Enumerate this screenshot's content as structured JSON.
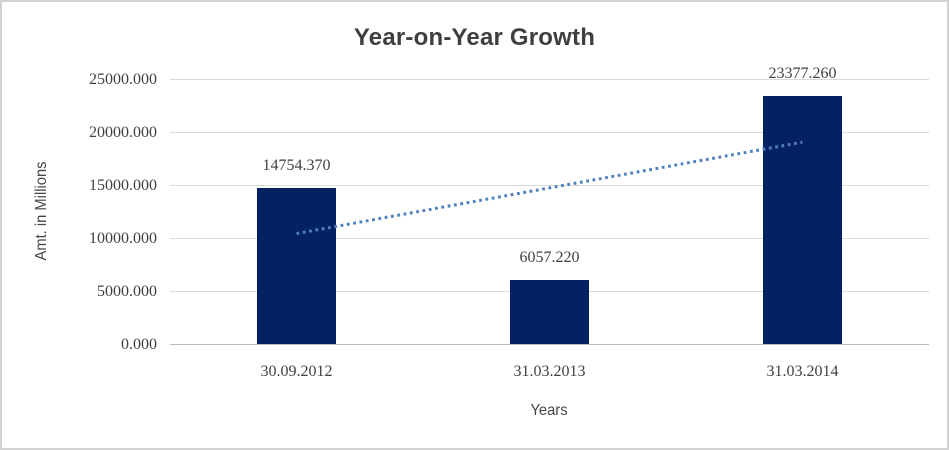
{
  "chart": {
    "title": "Year-on-Year Growth",
    "y_axis_title": "Amt. in Millions",
    "x_axis_title": "Years"
  },
  "chart_data": {
    "type": "bar",
    "title": "Year-on-Year Growth",
    "xlabel": "Years",
    "ylabel": "Amt. in Millions",
    "categories": [
      "30.09.2012",
      "31.03.2013",
      "31.03.2014"
    ],
    "values": [
      14754.37,
      6057.22,
      23377.26
    ],
    "data_labels": [
      "14754.370",
      "6057.220",
      "23377.260"
    ],
    "ylim": [
      0,
      25000
    ],
    "y_tick_step": 5000,
    "y_tick_labels": [
      "0.000",
      "5000.000",
      "10000.000",
      "15000.000",
      "20000.000",
      "25000.000"
    ],
    "grid": true,
    "legend": "none",
    "bar_color": "#042262",
    "trendline": {
      "type": "linear",
      "style": "dotted",
      "color": "#4f81bd",
      "start_value": 10418,
      "end_value": 19041
    },
    "colors": {
      "gridline": "#d9d9d9",
      "axis_line": "#b9b9b9",
      "text": "#3f3f3f",
      "frame_border": "#d2d2d2",
      "background": "#ffffff"
    }
  }
}
